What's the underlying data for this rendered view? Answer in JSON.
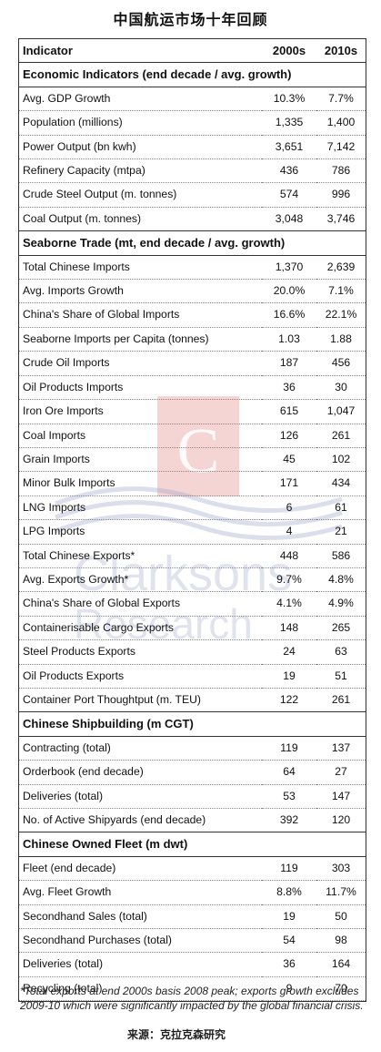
{
  "title": "中国航运市场十年回顾",
  "header": {
    "indicator": "Indicator",
    "col1": "2000s",
    "col2": "2010s"
  },
  "watermark": {
    "letter": "C",
    "line1": "Clarksons",
    "line2": "Research",
    "accent_color": "#e8a0a0"
  },
  "rows": [
    {
      "kind": "section",
      "label": "Economic Indicators (end decade / avg. growth)"
    },
    {
      "kind": "row",
      "label": "Avg. GDP Growth",
      "v1": "10.3%",
      "v2": "7.7%"
    },
    {
      "kind": "row",
      "label": "Population (millions)",
      "v1": "1,335",
      "v2": "1,400"
    },
    {
      "kind": "row",
      "label": "Power Output (bn kwh)",
      "v1": "3,651",
      "v2": "7,142"
    },
    {
      "kind": "row",
      "label": "Refinery Capacity (mtpa)",
      "v1": "436",
      "v2": "786"
    },
    {
      "kind": "row",
      "label": "Crude Steel Output (m. tonnes)",
      "v1": "574",
      "v2": "996"
    },
    {
      "kind": "row",
      "label": "Coal Output (m. tonnes)",
      "v1": "3,048",
      "v2": "3,746"
    },
    {
      "kind": "section",
      "label": "Seaborne Trade (mt, end decade / avg. growth)"
    },
    {
      "kind": "row",
      "label": "Total Chinese Imports",
      "v1": "1,370",
      "v2": "2,639"
    },
    {
      "kind": "row",
      "label": "Avg. Imports Growth",
      "v1": "20.0%",
      "v2": "7.1%"
    },
    {
      "kind": "row",
      "label": "China's Share of Global Imports",
      "v1": "16.6%",
      "v2": "22.1%"
    },
    {
      "kind": "row",
      "label": "Seaborne Imports per Capita (tonnes)",
      "v1": "1.03",
      "v2": "1.88"
    },
    {
      "kind": "group",
      "label": "Crude Oil Imports",
      "v1": "187",
      "v2": "456"
    },
    {
      "kind": "row",
      "label": "Oil Products Imports",
      "v1": "36",
      "v2": "30"
    },
    {
      "kind": "group",
      "label": "Iron Ore Imports",
      "v1": "615",
      "v2": "1,047"
    },
    {
      "kind": "row",
      "label": "Coal Imports",
      "v1": "126",
      "v2": "261"
    },
    {
      "kind": "row",
      "label": "Grain Imports",
      "v1": "45",
      "v2": "102"
    },
    {
      "kind": "row",
      "label": "Minor Bulk Imports",
      "v1": "171",
      "v2": "434"
    },
    {
      "kind": "group",
      "label": "LNG Imports",
      "v1": "6",
      "v2": "61"
    },
    {
      "kind": "row",
      "label": "LPG Imports",
      "v1": "4",
      "v2": "21"
    },
    {
      "kind": "group",
      "label": "Total Chinese Exports*",
      "v1": "448",
      "v2": "586"
    },
    {
      "kind": "row",
      "label": "Avg. Exports Growth*",
      "v1": "9.7%",
      "v2": "4.8%"
    },
    {
      "kind": "row",
      "label": "China's Share of Global Exports",
      "v1": "4.1%",
      "v2": "4.9%"
    },
    {
      "kind": "group",
      "label": "Containerisable Cargo Exports",
      "v1": "148",
      "v2": "265"
    },
    {
      "kind": "row",
      "label": "Steel Products Exports",
      "v1": "24",
      "v2": "63"
    },
    {
      "kind": "row",
      "label": "Oil Products Exports",
      "v1": "19",
      "v2": "51"
    },
    {
      "kind": "group",
      "label": "Container Port Thoughtput (m. TEU)",
      "v1": "122",
      "v2": "261"
    },
    {
      "kind": "section",
      "label": "Chinese Shipbuilding (m CGT)"
    },
    {
      "kind": "row",
      "label": "Contracting (total)",
      "v1": "119",
      "v2": "137"
    },
    {
      "kind": "row",
      "label": "Orderbook (end decade)",
      "v1": "64",
      "v2": "27"
    },
    {
      "kind": "row",
      "label": "Deliveries (total)",
      "v1": "53",
      "v2": "147"
    },
    {
      "kind": "row",
      "label": "No. of Active Shipyards (end decade)",
      "v1": "392",
      "v2": "120"
    },
    {
      "kind": "section",
      "label": "Chinese Owned Fleet (m dwt)"
    },
    {
      "kind": "row",
      "label": "Fleet (end decade)",
      "v1": "119",
      "v2": "303"
    },
    {
      "kind": "row",
      "label": "Avg. Fleet Growth",
      "v1": "8.8%",
      "v2": "11.7%"
    },
    {
      "kind": "row",
      "label": "Secondhand Sales (total)",
      "v1": "19",
      "v2": "50"
    },
    {
      "kind": "row",
      "label": "Secondhand Purchases (total)",
      "v1": "54",
      "v2": "98"
    },
    {
      "kind": "row",
      "label": "Deliveries (total)",
      "v1": "36",
      "v2": "164"
    },
    {
      "kind": "row",
      "label": "Recycling (total)",
      "v1": "9",
      "v2": "70"
    }
  ],
  "footnote": "*Total exports at end 2000s basis 2008 peak; exports growth excludes 2009-10 which were significantly impacted by the global financial crisis.",
  "source": "来源：克拉克森研究"
}
